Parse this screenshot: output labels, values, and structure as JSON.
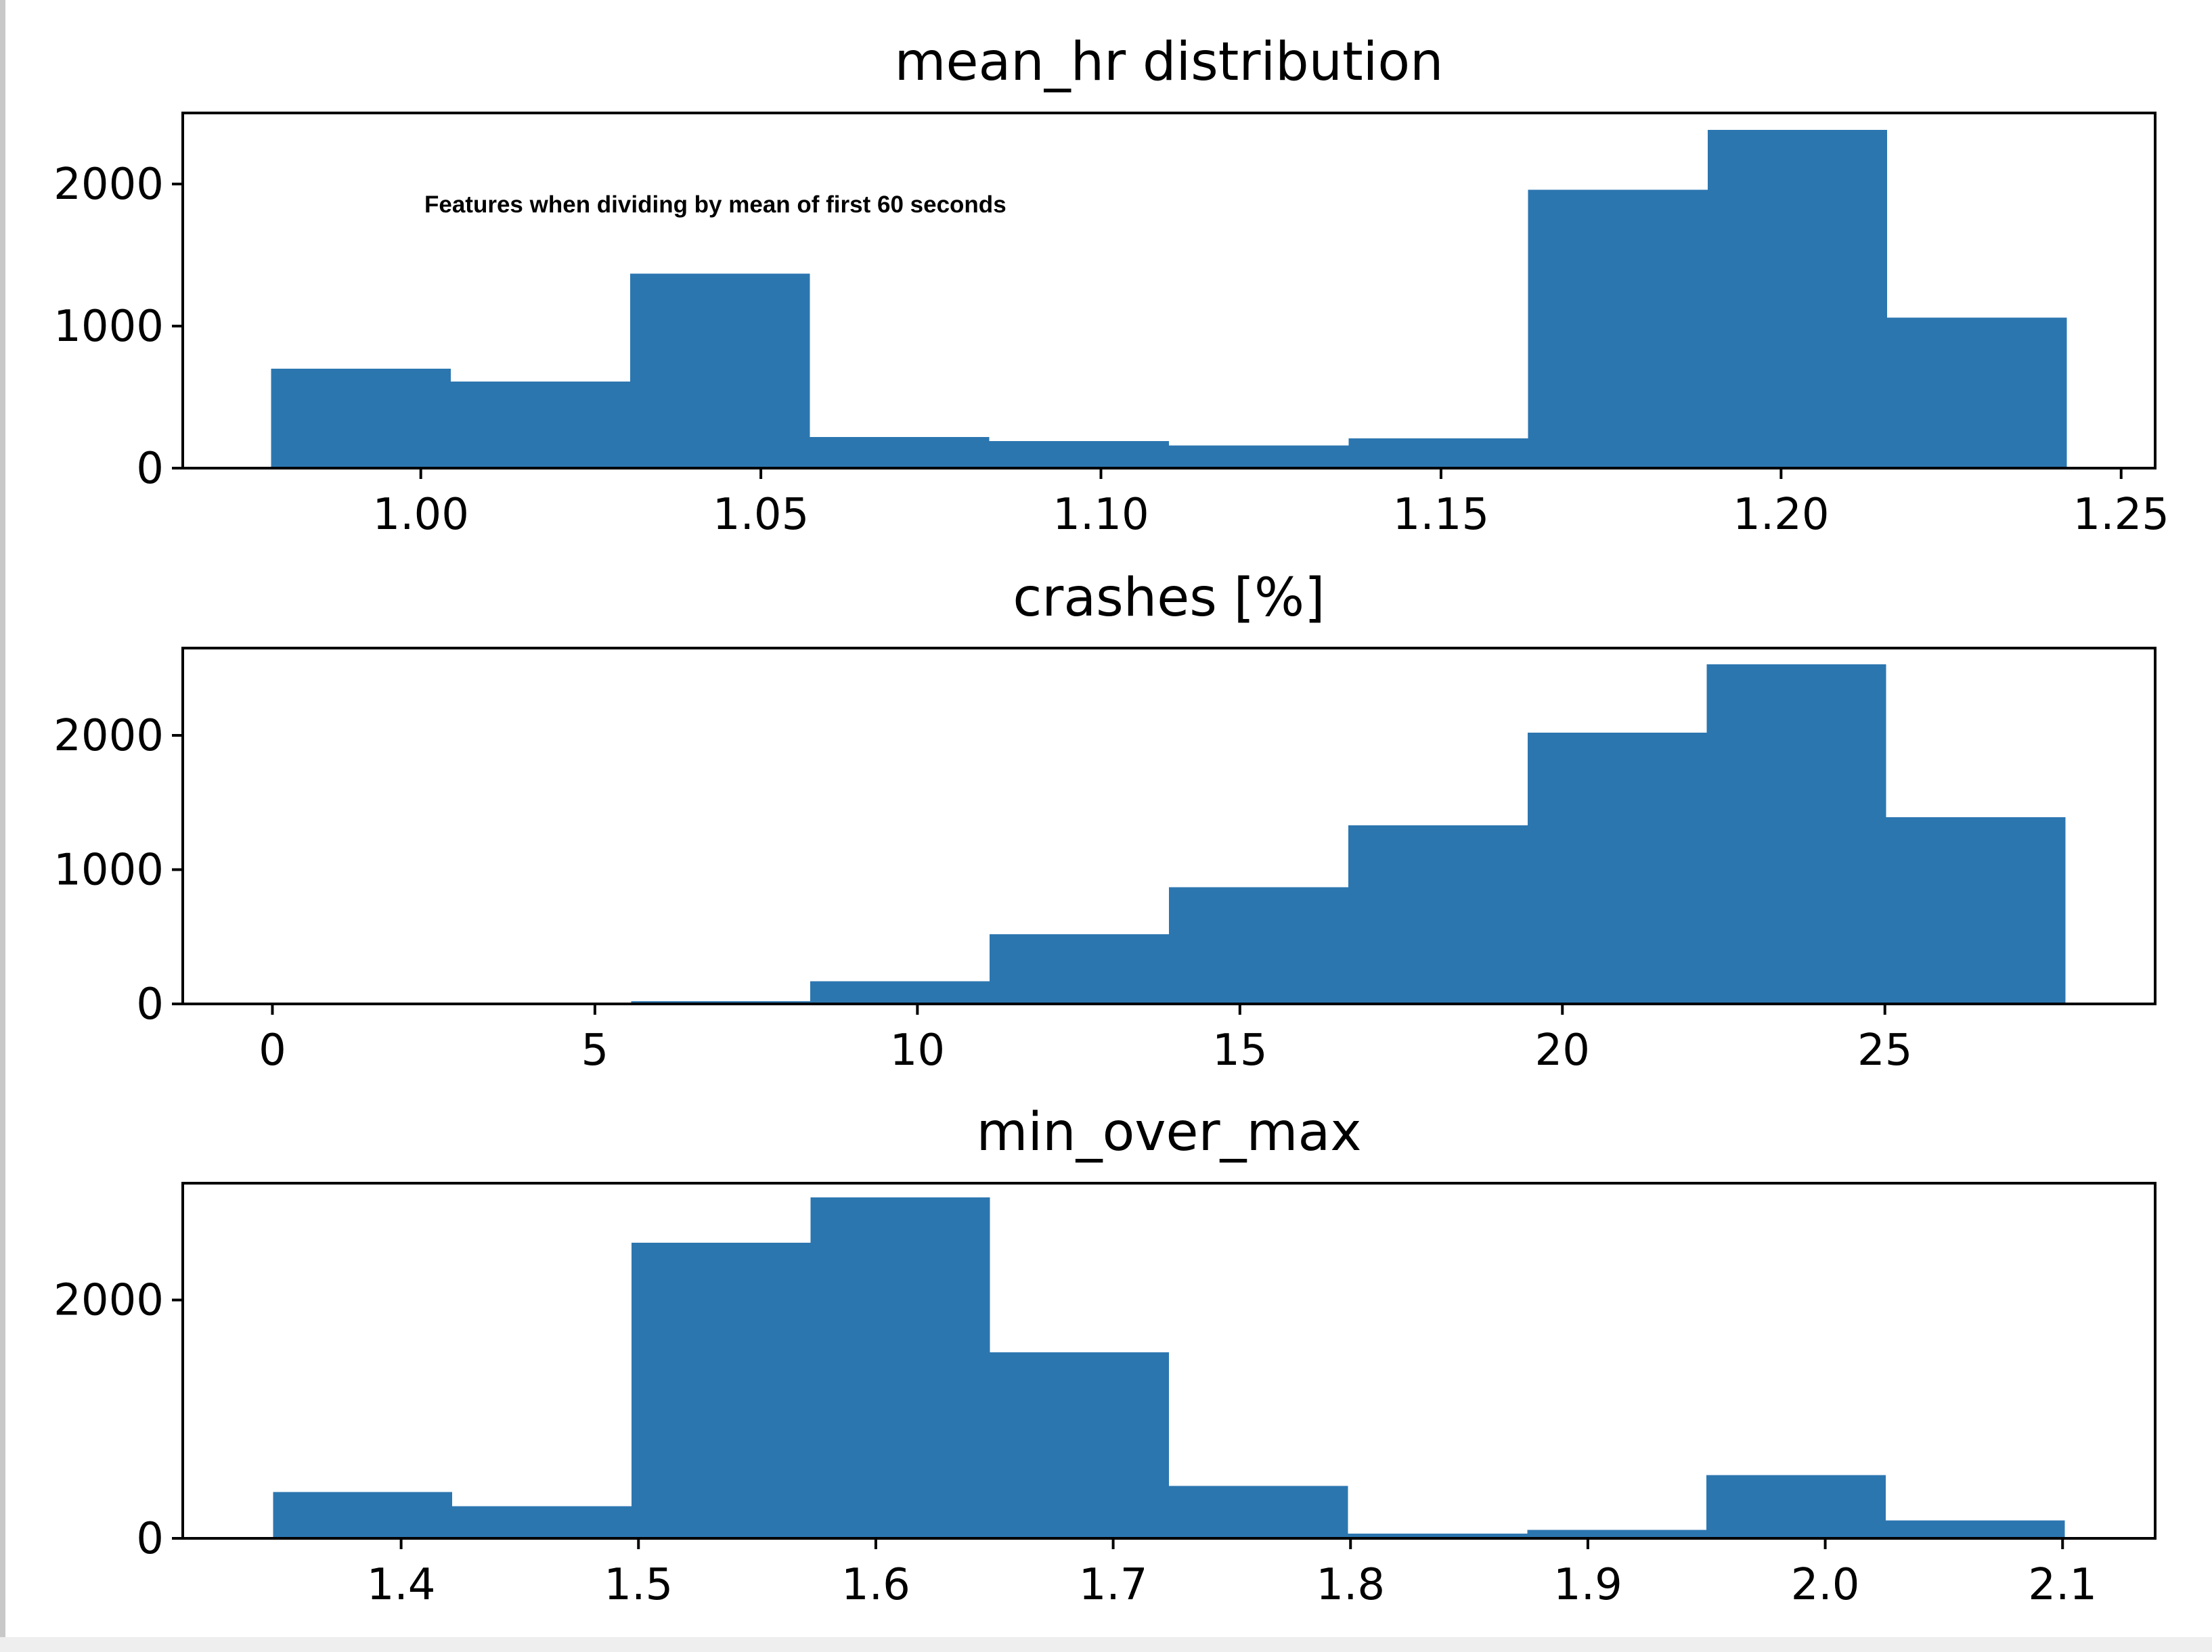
{
  "figure": {
    "bar_color": "#2c76b0",
    "axis_color": "#000000",
    "background": "#ffffff"
  },
  "chart_data": [
    {
      "type": "bar",
      "title": "mean_hr distribution",
      "annotation": "Features when dividing by mean of first 60 seconds",
      "bin_edges": [
        0.978,
        1.0044,
        1.0308,
        1.0572,
        1.0836,
        1.11,
        1.1364,
        1.1628,
        1.1892,
        1.2156,
        1.242
      ],
      "values": [
        700,
        610,
        1370,
        220,
        190,
        160,
        210,
        1960,
        2380,
        1060
      ],
      "xlim": [
        0.965,
        1.255
      ],
      "ylim": [
        0,
        2500
      ],
      "xticks": [
        1.0,
        1.05,
        1.1,
        1.15,
        1.2,
        1.25
      ],
      "xtick_labels": [
        "1.00",
        "1.05",
        "1.10",
        "1.15",
        "1.20",
        "1.25"
      ],
      "yticks": [
        0,
        1000,
        2000
      ],
      "ytick_labels": [
        "0",
        "1000",
        "2000"
      ],
      "grid": false,
      "xlabel": "",
      "ylabel": ""
    },
    {
      "type": "bar",
      "title": "crashes [%]",
      "bin_edges": [
        0,
        2.78,
        5.56,
        8.34,
        11.12,
        13.9,
        16.68,
        19.46,
        22.24,
        25.02,
        27.8
      ],
      "values": [
        0,
        0,
        20,
        170,
        520,
        870,
        1330,
        2020,
        2530,
        1390
      ],
      "xlim": [
        -1.39,
        29.19
      ],
      "ylim": [
        0,
        2650
      ],
      "xticks": [
        0,
        5,
        10,
        15,
        20,
        25
      ],
      "xtick_labels": [
        "0",
        "5",
        "10",
        "15",
        "20",
        "25"
      ],
      "yticks": [
        0,
        1000,
        2000
      ],
      "ytick_labels": [
        "0",
        "1000",
        "2000"
      ],
      "grid": false,
      "xlabel": "",
      "ylabel": ""
    },
    {
      "type": "bar",
      "title": "min_over_max",
      "bin_edges": [
        1.346,
        1.4215,
        1.497,
        1.5725,
        1.648,
        1.7235,
        1.799,
        1.8745,
        1.95,
        2.0255,
        2.101
      ],
      "values": [
        390,
        270,
        2480,
        2860,
        1560,
        440,
        40,
        70,
        530,
        150
      ],
      "xlim": [
        1.308,
        2.139
      ],
      "ylim": [
        0,
        2980
      ],
      "xticks": [
        1.4,
        1.5,
        1.6,
        1.7,
        1.8,
        1.9,
        2.0,
        2.1
      ],
      "xtick_labels": [
        "1.4",
        "1.5",
        "1.6",
        "1.7",
        "1.8",
        "1.9",
        "2.0",
        "2.1"
      ],
      "yticks": [
        0,
        2000
      ],
      "ytick_labels": [
        "0",
        "2000"
      ],
      "grid": false,
      "xlabel": "",
      "ylabel": ""
    }
  ]
}
